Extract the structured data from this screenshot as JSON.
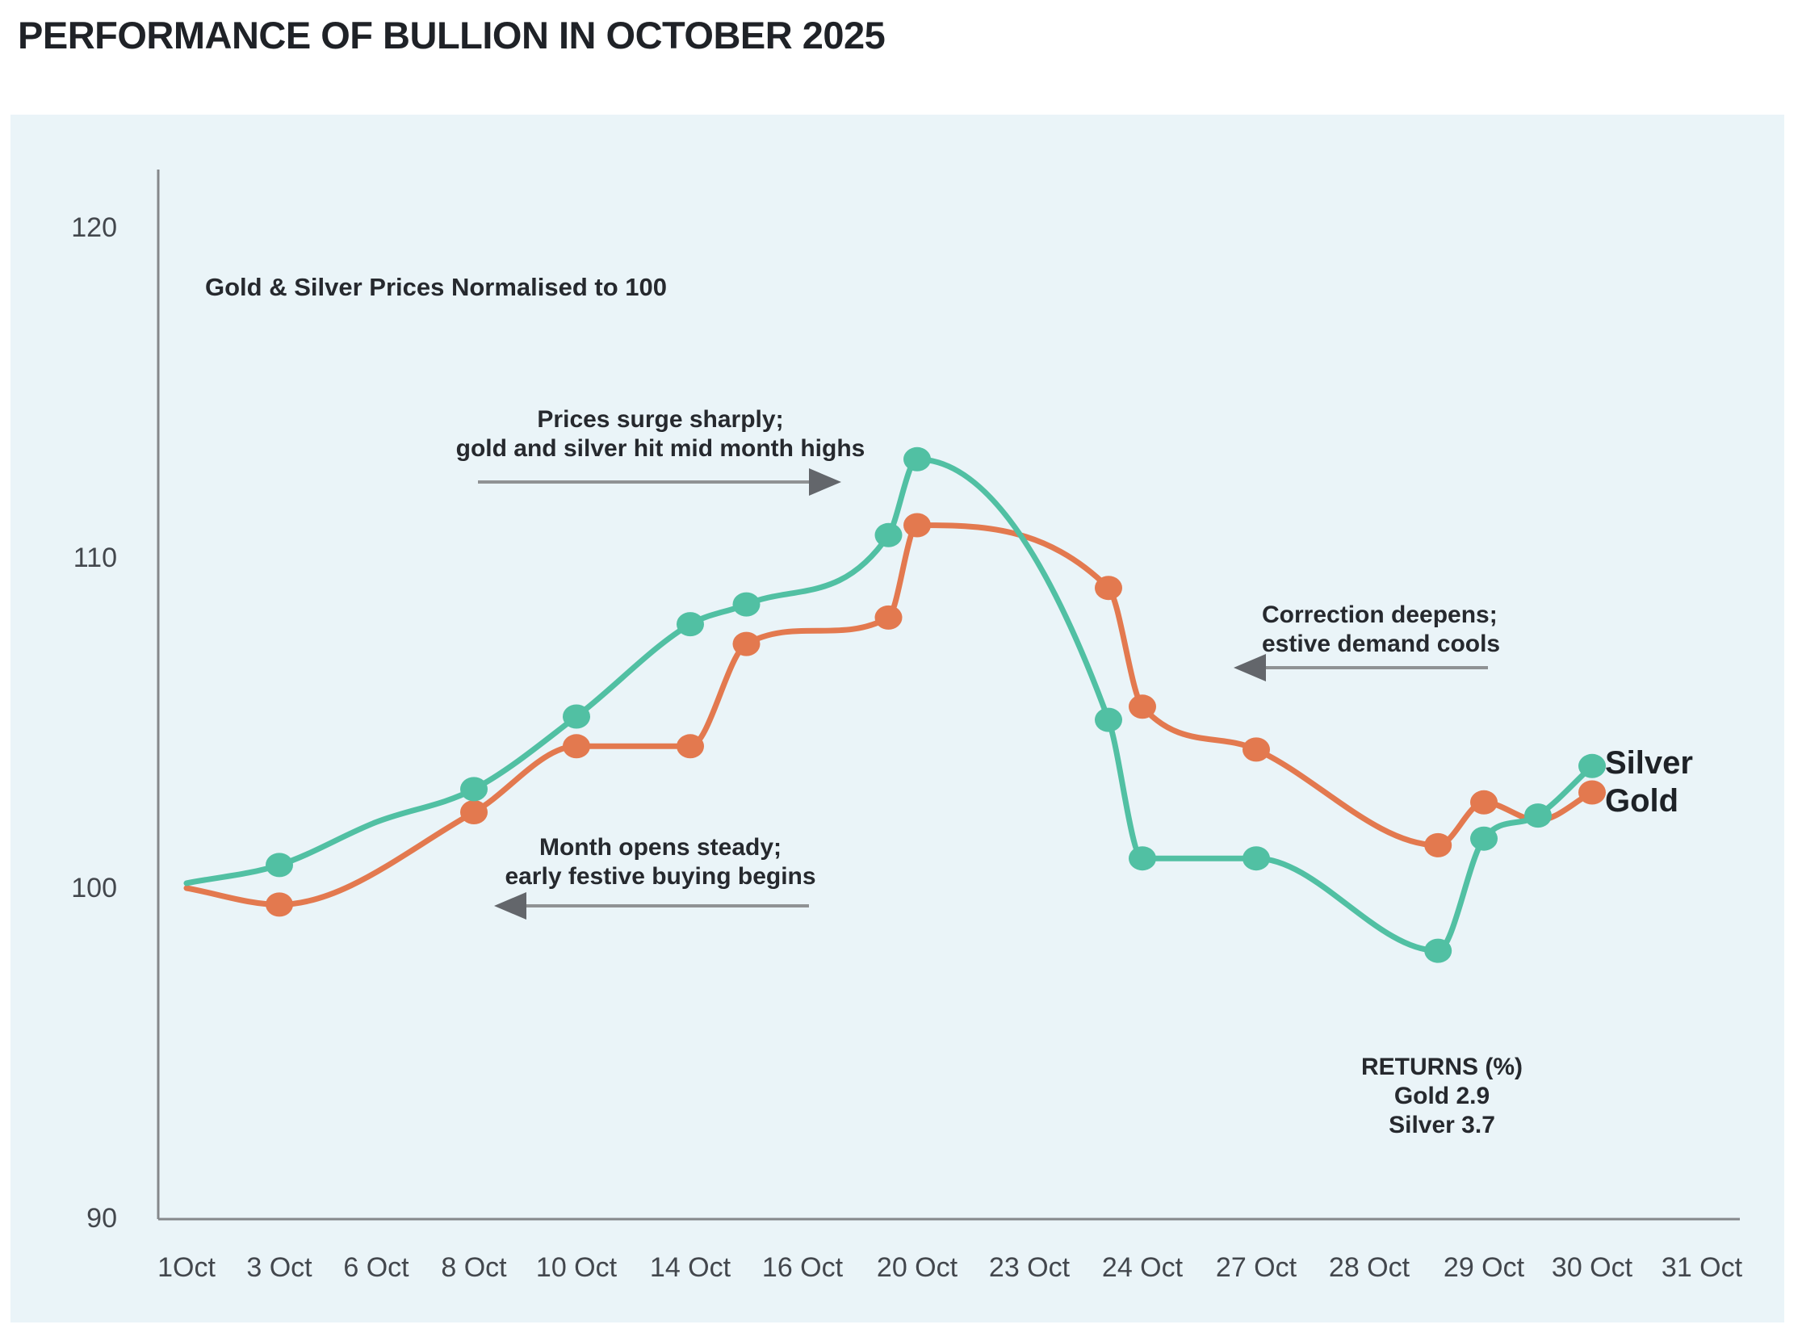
{
  "chart_data": {
    "type": "line",
    "title": "PERFORMANCE OF BULLION IN OCTOBER 2025",
    "subtitle": "Gold & Silver Prices Normalised to 100",
    "panel_background": "#eaf4f8",
    "axis_color": "#85888b",
    "arrow_color": "#8f9294",
    "legend_position": "end-of-line labels (right)",
    "grid": "off",
    "ylim": [
      90,
      121.5
    ],
    "y_axis": {
      "tick_values": [
        120,
        110,
        100,
        90
      ],
      "tick_labels": [
        "120",
        "110",
        "100",
        "90"
      ]
    },
    "x_axis": {
      "unit": "day of October 2025",
      "tick_days": [
        1,
        3,
        6,
        8,
        10,
        14,
        16,
        20,
        23,
        24,
        27,
        28,
        29,
        30,
        31
      ],
      "tick_labels": [
        "1Oct",
        "3 Oct",
        "6 Oct",
        "8 Oct",
        "10 Oct",
        "14 Oct",
        "16 Oct",
        "20 Oct",
        "23 Oct",
        "24 Oct",
        "27 Oct",
        "28 Oct",
        "29 Oct",
        "30 Oct",
        "31 Oct"
      ]
    },
    "series": [
      {
        "name": "Gold",
        "color": "#e3794f",
        "return_pct": 2.9,
        "points": [
          {
            "d": 1,
            "v": 100.0,
            "marker": false
          },
          {
            "d": 3,
            "v": 99.5
          },
          {
            "d": 8,
            "v": 102.3
          },
          {
            "d": 10,
            "v": 104.3
          },
          {
            "d": 14,
            "v": 104.3
          },
          {
            "d": 15,
            "v": 107.4
          },
          {
            "d": 19,
            "v": 108.2
          },
          {
            "d": 20,
            "v": 111.0
          },
          {
            "d": 23.7,
            "v": 109.1
          },
          {
            "d": 24,
            "v": 105.5
          },
          {
            "d": 27,
            "v": 104.2
          },
          {
            "d": 28.6,
            "v": 101.3
          },
          {
            "d": 29,
            "v": 102.6
          },
          {
            "d": 29.5,
            "v": 102.05,
            "marker": false
          },
          {
            "d": 30,
            "v": 102.9
          }
        ]
      },
      {
        "name": "Silver",
        "color": "#51c0a3",
        "return_pct": 3.7,
        "points": [
          {
            "d": 1,
            "v": 100.15,
            "marker": false
          },
          {
            "d": 3,
            "v": 100.7
          },
          {
            "d": 6,
            "v": 102.0,
            "marker": false
          },
          {
            "d": 8,
            "v": 103.0
          },
          {
            "d": 10,
            "v": 105.2
          },
          {
            "d": 14,
            "v": 108.0
          },
          {
            "d": 15,
            "v": 108.6
          },
          {
            "d": 19,
            "v": 110.7
          },
          {
            "d": 20,
            "v": 113.0
          },
          {
            "d": 23.7,
            "v": 105.1
          },
          {
            "d": 24,
            "v": 100.9
          },
          {
            "d": 27,
            "v": 100.9
          },
          {
            "d": 28.6,
            "v": 98.1
          },
          {
            "d": 29,
            "v": 101.5
          },
          {
            "d": 29.5,
            "v": 102.2
          },
          {
            "d": 30,
            "v": 103.7
          }
        ]
      }
    ],
    "annotations": [
      {
        "lines": [
          "Prices surge sharply;",
          "gold and silver hit mid month highs"
        ],
        "arrow_direction": "right"
      },
      {
        "lines": [
          "Month opens steady;",
          "early festive buying begins"
        ],
        "arrow_direction": "left"
      },
      {
        "lines": [
          "Correction deepens;",
          "estive demand cools"
        ],
        "arrow_direction": "left"
      }
    ],
    "returns_box": {
      "title": "RETURNS (%)",
      "lines": [
        "Gold 2.9",
        "Silver 3.7"
      ]
    },
    "end_labels": {
      "silver": "Silver",
      "gold": "Gold"
    }
  }
}
